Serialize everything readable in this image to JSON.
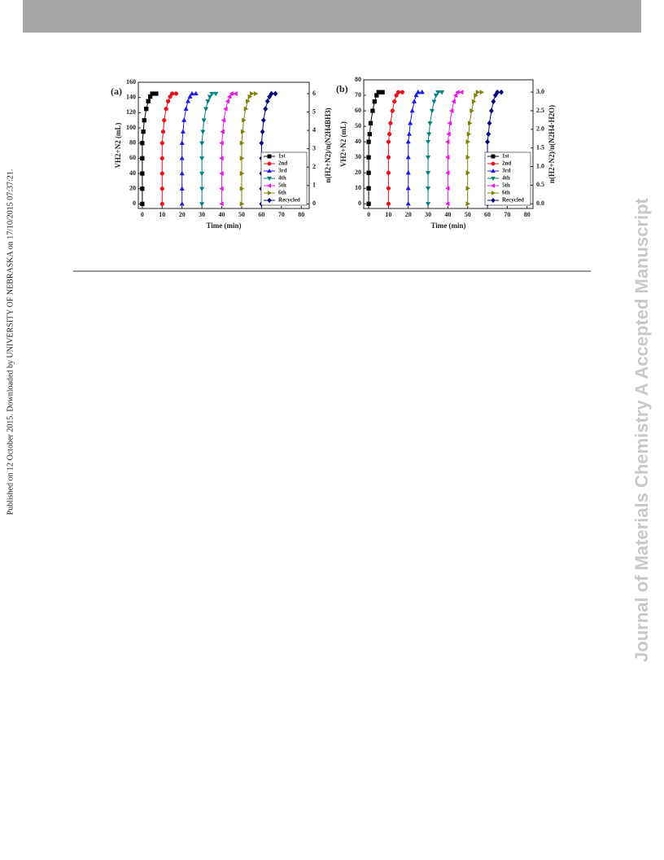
{
  "side_note": "Published on 12 October 2015. Downloaded by UNIVERSITY OF NEBRASKA on 17/10/2015 07:37:21.",
  "watermark": "Journal of Materials Chemistry A Accepted Manuscript",
  "chart_data": [
    {
      "type": "line",
      "title": "(a)",
      "x_label": "Time (min)",
      "y_label": "VH2+N2 (mL)",
      "y2_label": "n(H2+N2)/n(N2H4BH3)",
      "xlim": [
        -2,
        84
      ],
      "xticks": [
        0,
        10,
        20,
        30,
        40,
        50,
        60,
        70,
        80
      ],
      "ylim": [
        -6,
        160
      ],
      "yticks": [
        0,
        20,
        40,
        60,
        80,
        100,
        120,
        140,
        160
      ],
      "y2lim": [
        -0.25,
        6.62
      ],
      "y2ticks": [
        0,
        1,
        2,
        3,
        4,
        5,
        6
      ],
      "legend": "lower right",
      "series": [
        {
          "name": "1st",
          "color": "#000000",
          "marker": "square",
          "x": [
            0,
            0,
            0,
            0,
            0,
            0.5,
            1,
            2,
            3,
            4,
            5,
            7
          ],
          "values": [
            0,
            20,
            40,
            60,
            80,
            95,
            110,
            125,
            135,
            141,
            145,
            145
          ]
        },
        {
          "name": "2nd",
          "color": "#e8141c",
          "marker": "circle",
          "x": [
            10,
            10,
            10,
            10,
            10,
            10.5,
            11,
            12,
            13,
            14,
            15,
            17
          ],
          "values": [
            0,
            20,
            40,
            60,
            80,
            95,
            110,
            125,
            135,
            141,
            145,
            145
          ]
        },
        {
          "name": "3rd",
          "color": "#1a1ae8",
          "marker": "triangle-up",
          "x": [
            20,
            20,
            20,
            20,
            20,
            20.5,
            21,
            22,
            23,
            24,
            25,
            27
          ],
          "values": [
            0,
            20,
            40,
            60,
            80,
            95,
            110,
            125,
            135,
            141,
            145,
            145
          ]
        },
        {
          "name": "4th",
          "color": "#008080",
          "marker": "triangle-down",
          "x": [
            30,
            30,
            30,
            30,
            30,
            30.5,
            31,
            32,
            33,
            34,
            35,
            37
          ],
          "values": [
            0,
            20,
            40,
            60,
            80,
            95,
            110,
            125,
            135,
            141,
            145,
            145
          ]
        },
        {
          "name": "5th",
          "color": "#e81ae8",
          "marker": "triangle-left",
          "x": [
            40,
            40,
            40,
            40,
            40,
            40.5,
            41,
            42,
            43,
            44,
            45,
            47
          ],
          "values": [
            0,
            20,
            40,
            60,
            80,
            95,
            110,
            125,
            135,
            141,
            145,
            145
          ]
        },
        {
          "name": "6th",
          "color": "#808000",
          "marker": "triangle-right",
          "x": [
            50,
            50,
            50,
            50,
            50,
            50.5,
            51,
            52,
            53,
            54,
            55,
            57
          ],
          "values": [
            0,
            20,
            40,
            60,
            80,
            95,
            110,
            125,
            135,
            141,
            145,
            145
          ]
        },
        {
          "name": "Recycled",
          "color": "#000080",
          "marker": "diamond",
          "x": [
            60,
            60,
            60,
            60,
            60,
            60.5,
            61,
            62,
            63,
            64,
            65,
            67
          ],
          "values": [
            0,
            20,
            40,
            60,
            80,
            95,
            110,
            125,
            135,
            141,
            145,
            145
          ]
        }
      ]
    },
    {
      "type": "line",
      "title": "(b)",
      "x_label": "Time (min)",
      "y_label": "VH2+N2 (mL)",
      "y2_label": "n(H2+N2)/n(N2H4·H2O)",
      "xlim": [
        -2.5,
        83
      ],
      "xticks": [
        0,
        10,
        20,
        30,
        40,
        50,
        60,
        70,
        80
      ],
      "ylim": [
        -3,
        80
      ],
      "yticks": [
        0,
        10,
        20,
        30,
        40,
        50,
        60,
        70,
        80
      ],
      "y2lim": [
        -0.125,
        3.33
      ],
      "y2ticks": [
        {
          "value": 0,
          "label": "0.0"
        },
        0.5,
        {
          "value": 1,
          "label": "1.0"
        },
        1.5,
        {
          "value": 2,
          "label": "2.0"
        },
        2.5,
        {
          "value": 3,
          "label": "3.0"
        }
      ],
      "legend": "lower right",
      "series": [
        {
          "name": "1st",
          "color": "#000000",
          "marker": "square",
          "x": [
            0,
            0,
            0,
            0,
            0,
            0.5,
            1,
            2,
            3,
            4,
            5,
            7
          ],
          "values": [
            0,
            10,
            20,
            30,
            40,
            45,
            52,
            60,
            66,
            70,
            72,
            72
          ]
        },
        {
          "name": "2nd",
          "color": "#e8141c",
          "marker": "circle",
          "x": [
            10,
            10,
            10,
            10,
            10,
            10.5,
            11,
            12,
            13,
            14,
            15,
            17
          ],
          "values": [
            0,
            10,
            20,
            30,
            40,
            45,
            52,
            60,
            66,
            70,
            72,
            72
          ]
        },
        {
          "name": "3rd",
          "color": "#1a1ae8",
          "marker": "triangle-up",
          "x": [
            20,
            20,
            20,
            20,
            20,
            20.5,
            21,
            22,
            23,
            24,
            25,
            27
          ],
          "values": [
            0,
            10,
            20,
            30,
            40,
            45,
            52,
            60,
            66,
            70,
            72,
            72
          ]
        },
        {
          "name": "4th",
          "color": "#008080",
          "marker": "triangle-down",
          "x": [
            30,
            30,
            30,
            30,
            30,
            30.5,
            31,
            32,
            33,
            34,
            35,
            37
          ],
          "values": [
            0,
            10,
            20,
            30,
            40,
            45,
            52,
            60,
            66,
            70,
            72,
            72
          ]
        },
        {
          "name": "5th",
          "color": "#e81ae8",
          "marker": "triangle-left",
          "x": [
            40,
            40,
            40,
            40,
            40,
            40.5,
            41,
            42,
            43,
            44,
            45,
            47
          ],
          "values": [
            0,
            10,
            20,
            30,
            40,
            45,
            52,
            60,
            66,
            70,
            72,
            72
          ]
        },
        {
          "name": "6th",
          "color": "#808000",
          "marker": "triangle-right",
          "x": [
            50,
            50,
            50,
            50,
            50,
            50.5,
            51,
            52,
            53,
            54,
            55,
            57
          ],
          "values": [
            0,
            10,
            20,
            30,
            40,
            45,
            52,
            60,
            66,
            70,
            72,
            72
          ]
        },
        {
          "name": "Recycled",
          "color": "#000080",
          "marker": "diamond",
          "x": [
            60,
            60,
            60,
            60,
            60,
            60.5,
            61,
            62,
            63,
            64,
            65,
            67
          ],
          "values": [
            0,
            10,
            20,
            30,
            40,
            45,
            52,
            60,
            66,
            70,
            72,
            72
          ]
        }
      ]
    }
  ]
}
